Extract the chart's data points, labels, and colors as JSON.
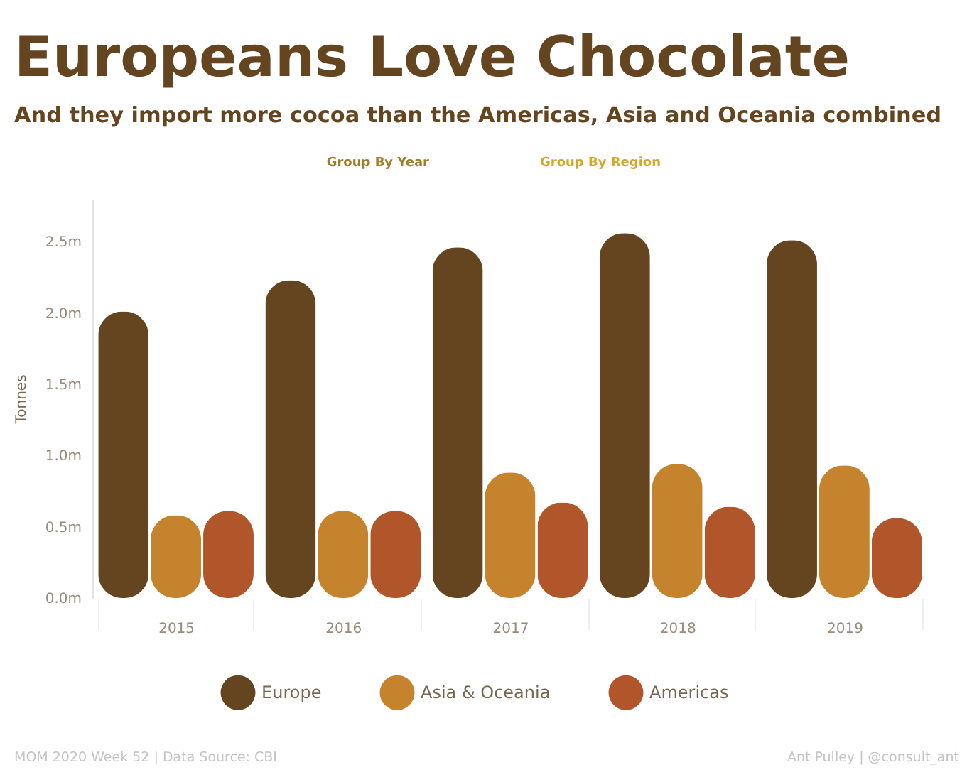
{
  "chart_data": {
    "type": "bar",
    "title": "Europeans Love Chocolate",
    "subtitle": "And they import more cocoa than the Americas, Asia and Oceania combined",
    "ylabel": "Tonnes",
    "categories": [
      "2015",
      "2016",
      "2017",
      "2018",
      "2019"
    ],
    "series": [
      {
        "name": "Europe",
        "color": "#654520",
        "values": [
          2.01,
          2.23,
          2.46,
          2.56,
          2.51
        ]
      },
      {
        "name": "Asia & Oceania",
        "color": "#c6832e",
        "values": [
          0.58,
          0.61,
          0.88,
          0.94,
          0.93
        ]
      },
      {
        "name": "Americas",
        "color": "#b1552a",
        "values": [
          0.61,
          0.61,
          0.67,
          0.64,
          0.56
        ]
      }
    ],
    "ylim": [
      0,
      2.8
    ],
    "yticks": [
      {
        "value": 0,
        "label": "0.0m"
      },
      {
        "value": 0.5,
        "label": "0.5m"
      },
      {
        "value": 1,
        "label": "1.0m"
      },
      {
        "value": 1.5,
        "label": "1.5m"
      },
      {
        "value": 2,
        "label": "2.0m"
      },
      {
        "value": 2.5,
        "label": "2.5m"
      }
    ],
    "legend": "bottom",
    "annotations": [
      "Group By Year",
      "Group By Region",
      "MOM 2020 Week 52 | Data Source: CBI",
      "Ant Pulley | @consult_ant"
    ]
  }
}
